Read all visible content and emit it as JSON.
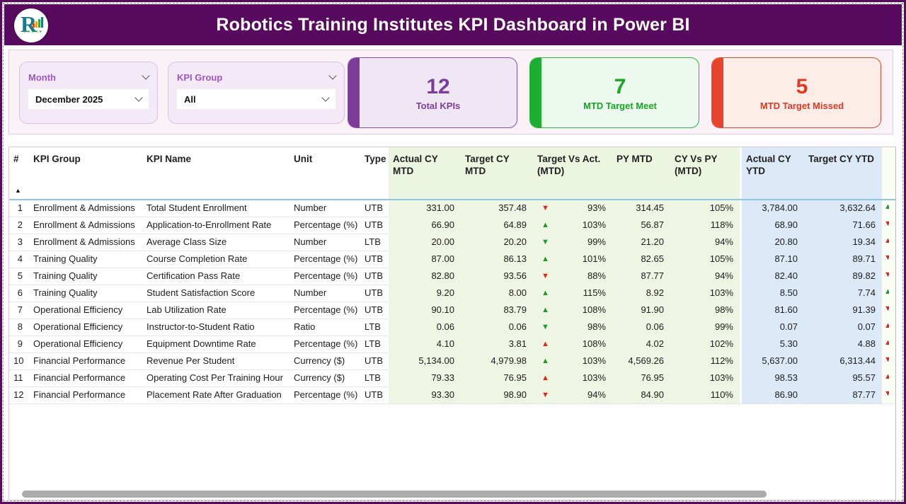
{
  "header": {
    "title": "Robotics Training Institutes KPI Dashboard in Power BI"
  },
  "filters": {
    "month": {
      "label": "Month",
      "value": "December 2025"
    },
    "kpi_group": {
      "label": "KPI Group",
      "value": "All"
    }
  },
  "cards": [
    {
      "value": "12",
      "label": "Total KPIs",
      "accent": "#7d3c98"
    },
    {
      "value": "7",
      "label": "MTD Target Meet",
      "accent": "#1cae2e"
    },
    {
      "value": "5",
      "label": "MTD Target Missed",
      "accent": "#e8432c"
    }
  ],
  "theme": {
    "header_purple": "#570a5e",
    "mtd_section_bg": "#eef6e3",
    "ytd_section_bg": "#dce9f7",
    "trend_up_good": "#149c28",
    "trend_bad": "#e02617"
  },
  "table": {
    "columns": [
      "#",
      "KPI Group",
      "KPI Name",
      "Unit",
      "Type",
      "Actual CY MTD",
      "Target CY MTD",
      "Target Vs Act. (MTD)",
      "PY MTD",
      "CY Vs PY (MTD)",
      "Actual CY YTD",
      "Target CY YTD"
    ],
    "sort_indicator": "▲",
    "rows": [
      {
        "num": "1",
        "group": "Enrollment & Admissions",
        "name": "Total Student Enrollment",
        "unit": "Number",
        "type": "UTB",
        "actual_mtd": "331.00",
        "target_mtd": "357.48",
        "mtd_trend": {
          "dir": "down",
          "tone": "red-t"
        },
        "tva_mtd": "93%",
        "py_mtd": "314.45",
        "cy_vs_py": "105%",
        "actual_ytd": "3,784.00",
        "target_ytd": "3,632.64",
        "ytd_trend": {
          "dir": "up",
          "tone": "green-t"
        }
      },
      {
        "num": "2",
        "group": "Enrollment & Admissions",
        "name": "Application-to-Enrollment Rate",
        "unit": "Percentage (%)",
        "type": "UTB",
        "actual_mtd": "66.90",
        "target_mtd": "64.89",
        "mtd_trend": {
          "dir": "up",
          "tone": "green-t"
        },
        "tva_mtd": "103%",
        "py_mtd": "56.87",
        "cy_vs_py": "118%",
        "actual_ytd": "68.90",
        "target_ytd": "71.66",
        "ytd_trend": {
          "dir": "down",
          "tone": "red-t"
        }
      },
      {
        "num": "3",
        "group": "Enrollment & Admissions",
        "name": "Average Class Size",
        "unit": "Number",
        "type": "LTB",
        "actual_mtd": "20.00",
        "target_mtd": "20.20",
        "mtd_trend": {
          "dir": "down",
          "tone": "green-t"
        },
        "tva_mtd": "99%",
        "py_mtd": "21.20",
        "cy_vs_py": "94%",
        "actual_ytd": "20.80",
        "target_ytd": "19.34",
        "ytd_trend": {
          "dir": "up",
          "tone": "red-t"
        }
      },
      {
        "num": "4",
        "group": "Training Quality",
        "name": "Course Completion Rate",
        "unit": "Percentage (%)",
        "type": "UTB",
        "actual_mtd": "87.00",
        "target_mtd": "86.13",
        "mtd_trend": {
          "dir": "up",
          "tone": "green-t"
        },
        "tva_mtd": "101%",
        "py_mtd": "82.65",
        "cy_vs_py": "105%",
        "actual_ytd": "87.10",
        "target_ytd": "89.71",
        "ytd_trend": {
          "dir": "down",
          "tone": "red-t"
        }
      },
      {
        "num": "5",
        "group": "Training Quality",
        "name": "Certification Pass Rate",
        "unit": "Percentage (%)",
        "type": "UTB",
        "actual_mtd": "82.80",
        "target_mtd": "93.56",
        "mtd_trend": {
          "dir": "down",
          "tone": "red-t"
        },
        "tva_mtd": "88%",
        "py_mtd": "87.77",
        "cy_vs_py": "94%",
        "actual_ytd": "82.40",
        "target_ytd": "89.82",
        "ytd_trend": {
          "dir": "down",
          "tone": "red-t"
        }
      },
      {
        "num": "6",
        "group": "Training Quality",
        "name": "Student Satisfaction Score",
        "unit": "Number",
        "type": "UTB",
        "actual_mtd": "9.20",
        "target_mtd": "8.00",
        "mtd_trend": {
          "dir": "up",
          "tone": "green-t"
        },
        "tva_mtd": "115%",
        "py_mtd": "8.92",
        "cy_vs_py": "103%",
        "actual_ytd": "8.50",
        "target_ytd": "7.74",
        "ytd_trend": {
          "dir": "up",
          "tone": "green-t"
        }
      },
      {
        "num": "7",
        "group": "Operational Efficiency",
        "name": "Lab Utilization Rate",
        "unit": "Percentage (%)",
        "type": "UTB",
        "actual_mtd": "90.10",
        "target_mtd": "83.79",
        "mtd_trend": {
          "dir": "up",
          "tone": "green-t"
        },
        "tva_mtd": "108%",
        "py_mtd": "91.90",
        "cy_vs_py": "98%",
        "actual_ytd": "81.60",
        "target_ytd": "91.39",
        "ytd_trend": {
          "dir": "down",
          "tone": "red-t"
        }
      },
      {
        "num": "8",
        "group": "Operational Efficiency",
        "name": "Instructor-to-Student Ratio",
        "unit": "Ratio",
        "type": "LTB",
        "actual_mtd": "0.06",
        "target_mtd": "0.06",
        "mtd_trend": {
          "dir": "down",
          "tone": "green-t"
        },
        "tva_mtd": "98%",
        "py_mtd": "0.06",
        "cy_vs_py": "99%",
        "actual_ytd": "0.07",
        "target_ytd": "0.07",
        "ytd_trend": {
          "dir": "up",
          "tone": "red-t"
        }
      },
      {
        "num": "9",
        "group": "Operational Efficiency",
        "name": "Equipment Downtime Rate",
        "unit": "Percentage (%)",
        "type": "LTB",
        "actual_mtd": "4.10",
        "target_mtd": "3.81",
        "mtd_trend": {
          "dir": "up",
          "tone": "red-t"
        },
        "tva_mtd": "108%",
        "py_mtd": "4.02",
        "cy_vs_py": "102%",
        "actual_ytd": "5.30",
        "target_ytd": "4.88",
        "ytd_trend": {
          "dir": "up",
          "tone": "red-t"
        }
      },
      {
        "num": "10",
        "group": "Financial Performance",
        "name": "Revenue Per Student",
        "unit": "Currency ($)",
        "type": "UTB",
        "actual_mtd": "5,134.00",
        "target_mtd": "4,979.98",
        "mtd_trend": {
          "dir": "up",
          "tone": "green-t"
        },
        "tva_mtd": "103%",
        "py_mtd": "4,569.26",
        "cy_vs_py": "112%",
        "actual_ytd": "5,637.00",
        "target_ytd": "6,313.44",
        "ytd_trend": {
          "dir": "down",
          "tone": "red-t"
        }
      },
      {
        "num": "11",
        "group": "Financial Performance",
        "name": "Operating Cost Per Training Hour",
        "unit": "Currency ($)",
        "type": "LTB",
        "actual_mtd": "79.33",
        "target_mtd": "76.95",
        "mtd_trend": {
          "dir": "up",
          "tone": "red-t"
        },
        "tva_mtd": "103%",
        "py_mtd": "76.95",
        "cy_vs_py": "103%",
        "actual_ytd": "98.53",
        "target_ytd": "95.57",
        "ytd_trend": {
          "dir": "up",
          "tone": "red-t"
        }
      },
      {
        "num": "12",
        "group": "Financial Performance",
        "name": "Placement Rate After Graduation",
        "unit": "Percentage (%)",
        "type": "UTB",
        "actual_mtd": "93.30",
        "target_mtd": "98.90",
        "mtd_trend": {
          "dir": "down",
          "tone": "red-t"
        },
        "tva_mtd": "94%",
        "py_mtd": "84.90",
        "cy_vs_py": "110%",
        "actual_ytd": "86.90",
        "target_ytd": "87.77",
        "ytd_trend": {
          "dir": "down",
          "tone": "red-t"
        }
      }
    ]
  }
}
